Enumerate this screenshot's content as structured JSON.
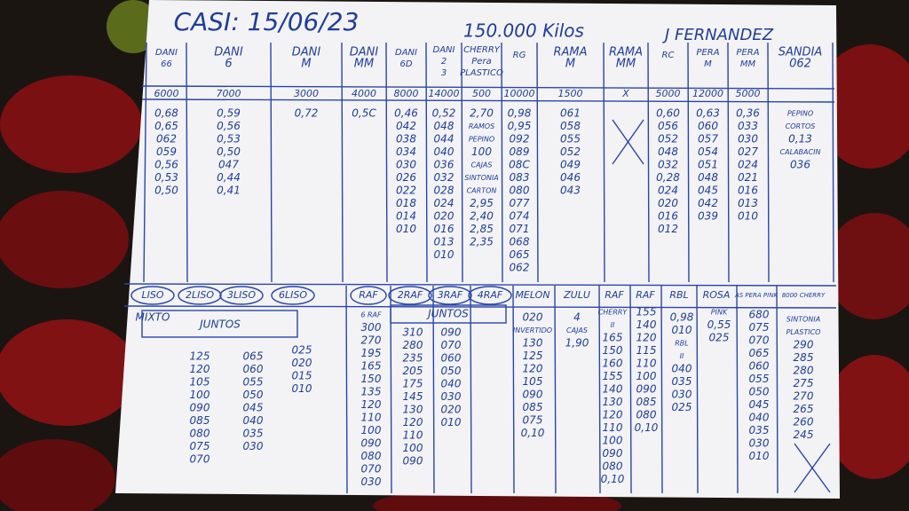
{
  "header": {
    "title": "CASI: 15/06/23",
    "kilos": "150.000 Kilos",
    "name": "J FERNANDEZ"
  },
  "top": {
    "columns": [
      {
        "header": [
          "DANI",
          "66"
        ],
        "qty": "6000",
        "values": [
          "0,68",
          "0,65",
          "062",
          "059",
          "0,56",
          "0,53",
          "0,50"
        ]
      },
      {
        "header": [
          "DANI",
          "6"
        ],
        "qty": "7000",
        "values": [
          "0,59",
          "0,56",
          "0,53",
          "0,50",
          "047",
          "0,44",
          "0,41"
        ]
      },
      {
        "header": [
          "DANI",
          "M"
        ],
        "qty": "3000",
        "values": [
          "0,72"
        ]
      },
      {
        "header": [
          "DANI",
          "MM"
        ],
        "qty": "4000",
        "values": [
          "0,5C"
        ]
      },
      {
        "header": [
          "DANI",
          "6D"
        ],
        "qty": "8000",
        "values": [
          "0,46",
          "042",
          "038",
          "034",
          "030",
          "026",
          "022",
          "018",
          "014",
          "010"
        ]
      },
      {
        "header": [
          "DANI",
          "2",
          "3"
        ],
        "qty": "14000",
        "values": [
          "0,52",
          "048",
          "044",
          "040",
          "036",
          "032",
          "028",
          "024",
          "020",
          "016",
          "013",
          "010"
        ]
      },
      {
        "header": [
          "CHERRY",
          "Pera",
          "PLASTICO"
        ],
        "qty": "500",
        "values": [
          "2,70",
          "RAMOS",
          "PEPINO",
          "100",
          "CAJAS",
          "SINTONIA",
          "CARTON",
          "2,95",
          "2,40",
          "2,85",
          "2,35"
        ]
      },
      {
        "header": [
          "RG"
        ],
        "qty": "10000",
        "values": [
          "0,98",
          "0,95",
          "092",
          "089",
          "08C",
          "083",
          "080",
          "077",
          "074",
          "071",
          "068",
          "065",
          "062"
        ]
      },
      {
        "header": [
          "RAMA",
          "M"
        ],
        "qty": "1500",
        "values": [
          "061",
          "058",
          "055",
          "052",
          "049",
          "046",
          "043"
        ]
      },
      {
        "header": [
          "RAMA",
          "MM"
        ],
        "qty": "X",
        "values": []
      },
      {
        "header": [
          "RC"
        ],
        "qty": "5000",
        "values": [
          "0,60",
          "056",
          "052",
          "048",
          "032",
          "0,28",
          "024",
          "020",
          "016",
          "012"
        ]
      },
      {
        "header": [
          "PERA",
          "M"
        ],
        "qty": "12000",
        "values": [
          "0,63",
          "060",
          "057",
          "054",
          "051",
          "048",
          "045",
          "042",
          "039"
        ]
      },
      {
        "header": [
          "PERA",
          "MM"
        ],
        "qty": "5000",
        "values": [
          "0,36",
          "033",
          "030",
          "027",
          "024",
          "021",
          "016",
          "013",
          "010"
        ]
      },
      {
        "header": [
          "SANDIA",
          "062"
        ],
        "qty": "",
        "values": [
          "PEPINO",
          "CORTOS",
          "0,13",
          "CALABACIN",
          "036"
        ]
      }
    ]
  },
  "bottom": {
    "headers": [
      "LISO",
      "2LISO",
      "3LISO",
      "6LISO",
      "RAF",
      "2RAF",
      "3RAF",
      "4RAF",
      "MELON",
      "ZULU",
      "RAF",
      "RAF",
      "RBL",
      "ROSA",
      "AS PERA PINK",
      "8000 CHERRY"
    ],
    "notes": [
      "MIXTO",
      "JUNTOS",
      "JUNTOS"
    ],
    "columns": [
      {
        "values": [
          "125",
          "120",
          "105",
          "100",
          "090",
          "085",
          "080",
          "075",
          "070"
        ]
      },
      {
        "values": [
          "065",
          "060",
          "055",
          "050",
          "045",
          "040",
          "035",
          "030"
        ]
      },
      {
        "values": [
          "025",
          "020",
          "015",
          "010"
        ]
      },
      {
        "values": [
          "6 RAF",
          "300",
          "270",
          "195",
          "165",
          "150",
          "135",
          "120",
          "110",
          "100",
          "090",
          "080",
          "070",
          "030"
        ]
      },
      {
        "values": [
          "310",
          "280",
          "235",
          "205",
          "175",
          "145",
          "130",
          "120",
          "110",
          "100",
          "090"
        ]
      },
      {
        "values": [
          "090",
          "070",
          "060",
          "050",
          "040",
          "030",
          "020",
          "010"
        ]
      },
      {
        "values": [
          "020",
          "INVERTIDO",
          "130",
          "125",
          "120",
          "105",
          "090",
          "085",
          "075",
          "0,10"
        ]
      },
      {
        "values": [
          "4",
          "CAJAS",
          "1,90"
        ]
      },
      {
        "values": [
          "CHERRY",
          "II",
          "165",
          "150",
          "160",
          "155",
          "140",
          "130",
          "120",
          "110",
          "100",
          "090",
          "080",
          "0,10"
        ]
      },
      {
        "values": [
          "155",
          "140",
          "120",
          "115",
          "110",
          "100",
          "090",
          "085",
          "080",
          "0,10"
        ]
      },
      {
        "values": [
          "0,98",
          "010",
          "RBL",
          "II",
          "040",
          "035",
          "030",
          "025"
        ]
      },
      {
        "values": [
          "PINK",
          "0,55",
          "025"
        ]
      },
      {
        "values": [
          "680",
          "075",
          "070",
          "065",
          "060",
          "055",
          "050",
          "045",
          "040",
          "035",
          "030",
          "010"
        ]
      },
      {
        "values": [
          "SINTONIA",
          "PLASTICO",
          "290",
          "285",
          "280",
          "275",
          "270",
          "265",
          "260",
          "245"
        ]
      }
    ]
  }
}
